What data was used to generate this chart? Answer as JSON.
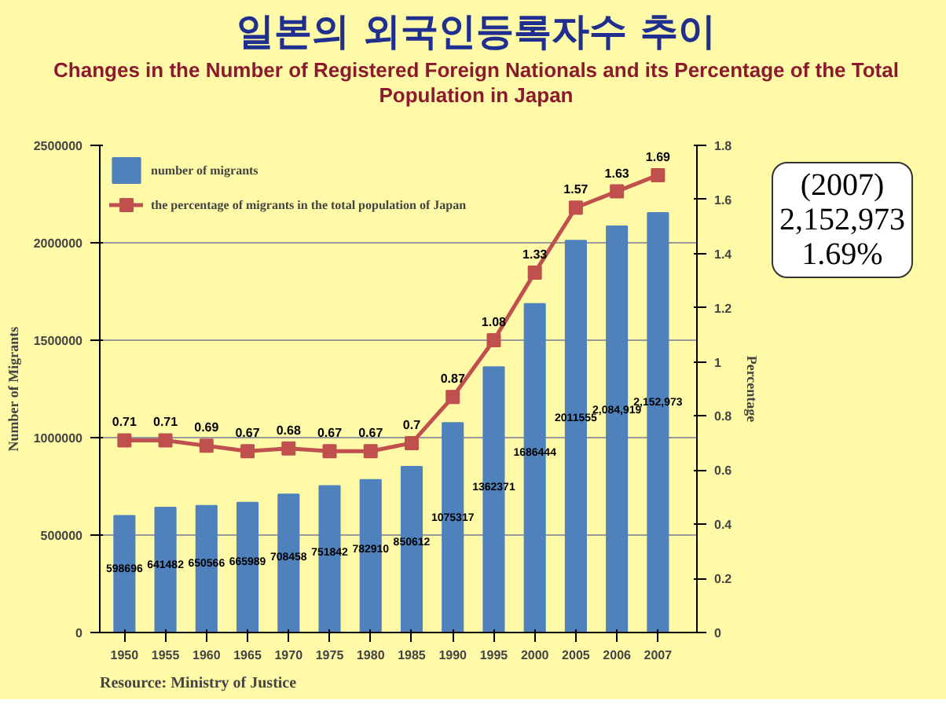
{
  "chart_data": {
    "type": "bar",
    "title": "일본의 외국인등록자수 추이",
    "subtitle": "Changes in the Number of Registered Foreign Nationals and its Percentage of the Total Population in Japan",
    "xlabel": null,
    "ylabel": "Number of Migrants",
    "y2label": "Percentage",
    "categories": [
      "1950",
      "1955",
      "1960",
      "1965",
      "1970",
      "1975",
      "1980",
      "1985",
      "1990",
      "1995",
      "2000",
      "2005",
      "2006",
      "2007"
    ],
    "series": [
      {
        "name": "number of migrants",
        "color": "#4f81bd",
        "values": [
          598696,
          641482,
          650566,
          665989,
          708458,
          751842,
          782910,
          850612,
          1075317,
          1362371,
          1686444,
          2011555,
          2084919,
          2152973
        ],
        "value_labels": [
          "598696",
          "641482",
          "650566",
          "665989",
          "708458",
          "751842",
          "782910",
          "850612",
          "1075317",
          "1362371",
          "1686444",
          "2011555",
          "2,084,919",
          "2,152,973"
        ]
      },
      {
        "name": "the percentage of migrants in the total population of Japan",
        "type": "line",
        "axis": "y2",
        "color": "#c0504d",
        "marker": "square",
        "data_labels": true,
        "values": [
          0.71,
          0.71,
          0.69,
          0.67,
          0.68,
          0.67,
          0.67,
          0.7,
          0.87,
          1.08,
          1.33,
          1.57,
          1.63,
          1.69
        ]
      }
    ],
    "ylim": [
      0,
      2500000
    ],
    "yticks": [
      0,
      500000,
      1000000,
      1500000,
      2000000,
      2500000
    ],
    "y2lim": [
      0,
      1.8
    ],
    "y2ticks": [
      0,
      0.2,
      0.4,
      0.6,
      0.8,
      1,
      1.2,
      1.4,
      1.6,
      1.8
    ],
    "grid": "y",
    "legend": "top left",
    "annotations": [
      "(2007)\n2,152,973\n1.69%",
      "Resource: Ministry of Justice"
    ]
  }
}
